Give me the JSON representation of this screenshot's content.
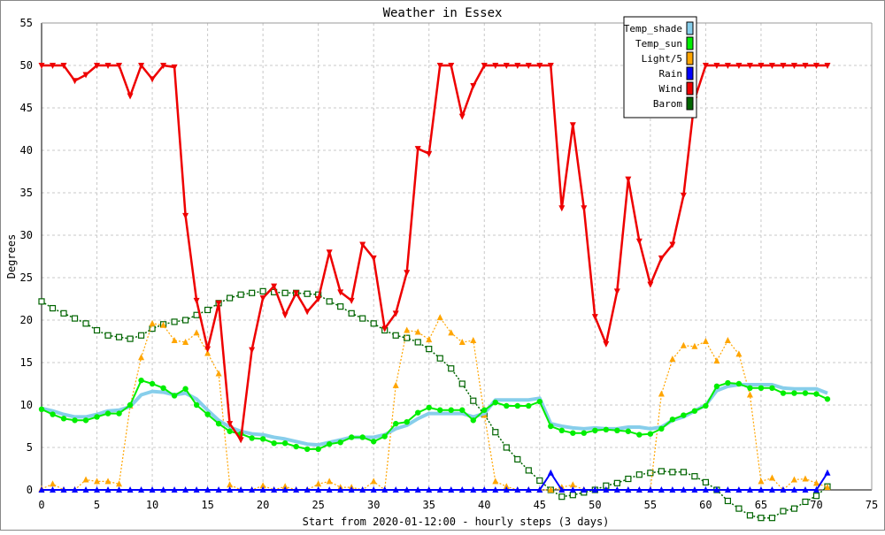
{
  "chart_data": {
    "type": "line",
    "title": "Weather in Essex",
    "xlabel": "Start from 2020-01-12:00 - hourly steps (3 days)",
    "ylabel": "Degrees",
    "xlim": [
      0,
      75
    ],
    "ylim": [
      -3,
      55
    ],
    "x_ticks": [
      0,
      5,
      10,
      15,
      20,
      25,
      30,
      35,
      40,
      45,
      50,
      55,
      60,
      65,
      70,
      75
    ],
    "y_ticks": [
      0,
      5,
      10,
      15,
      20,
      25,
      30,
      35,
      40,
      45,
      50,
      55
    ],
    "grid": true,
    "legend_position": "top-right",
    "series": [
      {
        "name": "Temp_shade",
        "color": "#87ceeb",
        "values": [
          9.6,
          9.3,
          8.9,
          8.6,
          8.6,
          8.9,
          9.3,
          9.4,
          9.8,
          11.2,
          11.6,
          11.5,
          11.2,
          11.4,
          10.7,
          9.4,
          8.2,
          7.4,
          6.9,
          6.6,
          6.5,
          6.2,
          6.0,
          5.7,
          5.4,
          5.3,
          5.6,
          5.9,
          6.2,
          6.2,
          6.2,
          6.5,
          7.2,
          7.6,
          8.4,
          9.0,
          9.0,
          9.0,
          9.0,
          8.6,
          9.0,
          10.6,
          10.6,
          10.6,
          10.6,
          10.8,
          7.8,
          7.5,
          7.3,
          7.2,
          7.3,
          7.2,
          7.2,
          7.4,
          7.4,
          7.2,
          7.4,
          8.2,
          8.6,
          9.3,
          10.0,
          11.7,
          12.2,
          12.4,
          12.4,
          12.4,
          12.4,
          12.0,
          11.9,
          11.9,
          11.9,
          11.4
        ]
      },
      {
        "name": "Temp_sun",
        "color": "#00ee00",
        "values": [
          9.5,
          8.9,
          8.4,
          8.2,
          8.2,
          8.6,
          9.0,
          9.0,
          10.0,
          12.9,
          12.5,
          12.0,
          11.1,
          11.9,
          10.0,
          8.9,
          7.8,
          6.9,
          6.6,
          6.1,
          6.0,
          5.5,
          5.5,
          5.1,
          4.8,
          4.8,
          5.4,
          5.6,
          6.2,
          6.2,
          5.7,
          6.3,
          7.8,
          8.0,
          9.1,
          9.7,
          9.4,
          9.4,
          9.4,
          8.2,
          9.4,
          10.3,
          9.9,
          9.9,
          9.9,
          10.4,
          7.5,
          7.0,
          6.7,
          6.7,
          7.0,
          7.1,
          7.0,
          6.9,
          6.5,
          6.6,
          7.2,
          8.3,
          8.8,
          9.3,
          9.9,
          12.2,
          12.6,
          12.5,
          12.0,
          12.0,
          12.0,
          11.4,
          11.4,
          11.4,
          11.3,
          10.7
        ]
      },
      {
        "name": "Light/5",
        "color": "#ffa500",
        "values": [
          0.1,
          0.7,
          0.0,
          0.0,
          1.2,
          1.0,
          1.0,
          0.7,
          9.9,
          15.6,
          19.6,
          19.4,
          17.6,
          17.4,
          18.5,
          16.1,
          13.7,
          0.6,
          0.0,
          0.0,
          0.5,
          0.0,
          0.4,
          0.0,
          0.0,
          0.7,
          1.0,
          0.3,
          0.3,
          0.0,
          1.0,
          0.0,
          12.3,
          18.8,
          18.6,
          17.7,
          20.3,
          18.5,
          17.4,
          17.6,
          8.8,
          1.0,
          0.4,
          0.0,
          0.0,
          0.0,
          0.0,
          0.3,
          0.6,
          0.0,
          0.0,
          0.0,
          0.0,
          0.0,
          0.0,
          0.0,
          11.3,
          15.4,
          17.0,
          16.9,
          17.5,
          15.2,
          17.6,
          16.0,
          11.2,
          1.0,
          1.4,
          0.0,
          1.2,
          1.3,
          0.8,
          0.3
        ]
      },
      {
        "name": "Rain",
        "color": "#0000ff",
        "values": [
          0,
          0,
          0,
          0,
          0,
          0,
          0,
          0,
          0,
          0,
          0,
          0,
          0,
          0,
          0,
          0,
          0,
          0,
          0,
          0,
          0,
          0,
          0,
          0,
          0,
          0,
          0,
          0,
          0,
          0,
          0,
          0,
          0,
          0,
          0,
          0,
          0,
          0,
          0,
          0,
          0,
          0,
          0,
          0,
          0,
          0,
          2.0,
          0,
          0,
          0,
          0,
          0,
          0,
          0,
          0,
          0,
          0,
          0,
          0,
          0,
          0,
          0,
          0,
          0,
          0,
          0,
          0,
          0,
          0,
          0,
          0,
          2.0
        ]
      },
      {
        "name": "Wind",
        "color": "#ee0000",
        "values": [
          50,
          50,
          50,
          48.2,
          48.9,
          50,
          50,
          50,
          46.4,
          50,
          48.4,
          50,
          49.8,
          32.3,
          22.3,
          16.6,
          22.0,
          7.8,
          5.9,
          16.5,
          22.6,
          24.0,
          20.6,
          23.2,
          21.0,
          22.5,
          28.0,
          23.3,
          22.3,
          28.9,
          27.3,
          19.0,
          20.8,
          25.6,
          40.2,
          39.6,
          50,
          50,
          44.0,
          47.6,
          50,
          50,
          50,
          50,
          50,
          50,
          50,
          33.2,
          43.0,
          33.2,
          20.4,
          17.2,
          23.4,
          36.6,
          29.3,
          24.2,
          27.3,
          28.9,
          34.7,
          46.0,
          50,
          50,
          50,
          50,
          50,
          50,
          50,
          50,
          50,
          50,
          50,
          50
        ]
      },
      {
        "name": "Barom",
        "color": "#006400",
        "values": [
          22.2,
          21.4,
          20.8,
          20.2,
          19.6,
          18.8,
          18.2,
          18.0,
          17.8,
          18.2,
          19.0,
          19.5,
          19.8,
          20.0,
          20.6,
          21.2,
          22.0,
          22.6,
          23.0,
          23.2,
          23.4,
          23.3,
          23.2,
          23.2,
          23.1,
          23.0,
          22.2,
          21.6,
          20.8,
          20.2,
          19.6,
          18.8,
          18.2,
          17.9,
          17.4,
          16.6,
          15.5,
          14.3,
          12.5,
          10.5,
          8.9,
          6.8,
          5.0,
          3.6,
          2.3,
          1.1,
          0.0,
          -0.8,
          -0.6,
          -0.3,
          0.0,
          0.5,
          0.8,
          1.3,
          1.8,
          2.0,
          2.2,
          2.1,
          2.1,
          1.6,
          0.9,
          0.0,
          -1.3,
          -2.2,
          -3.0,
          -3.3,
          -3.3,
          -2.5,
          -2.2,
          -1.4,
          -0.7,
          0.4
        ]
      }
    ]
  }
}
